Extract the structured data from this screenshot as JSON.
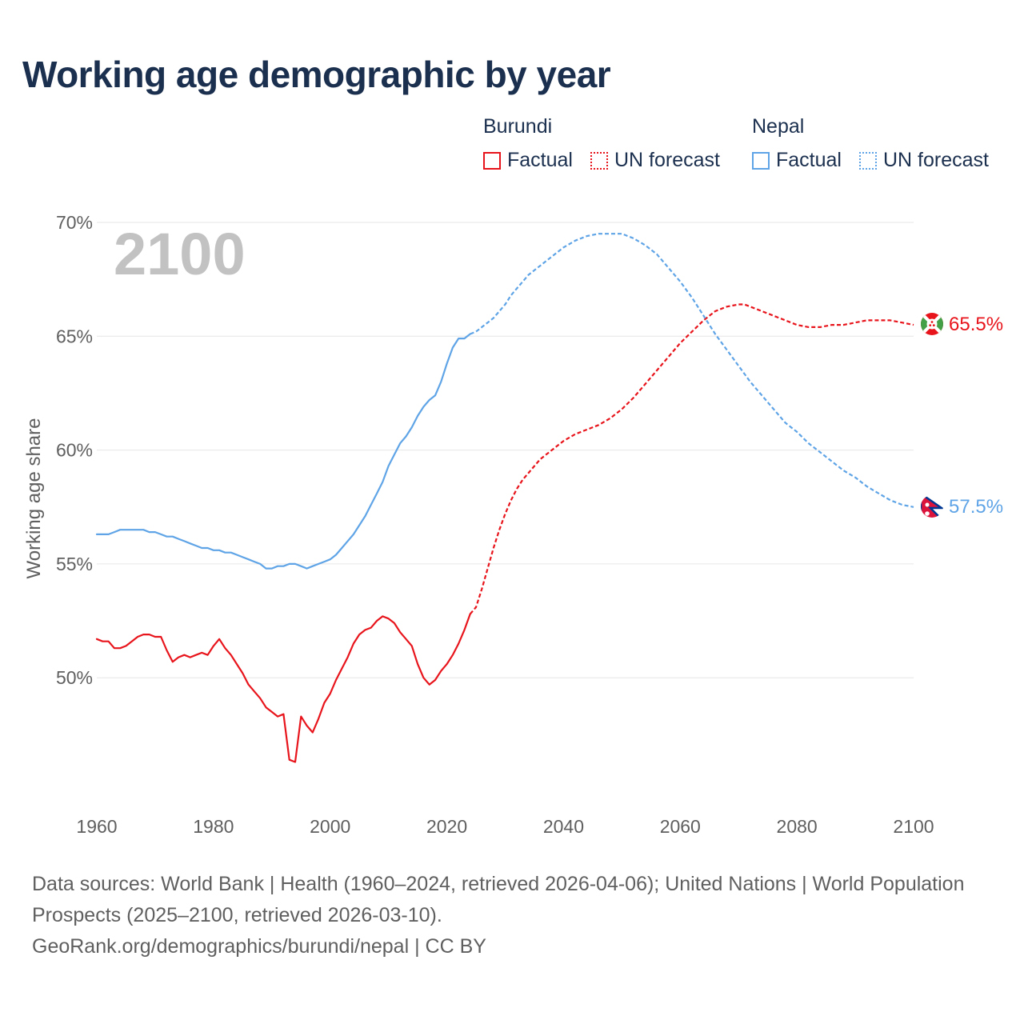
{
  "title": "Working age demographic by year",
  "year_overlay": "2100",
  "legend": {
    "groups": [
      {
        "name": "Burundi",
        "color": "#e8141b",
        "factual_label": "Factual",
        "forecast_label": "UN forecast"
      },
      {
        "name": "Nepal",
        "color": "#5fa4e6",
        "factual_label": "Factual",
        "forecast_label": "UN forecast"
      }
    ]
  },
  "footer": {
    "sources": "Data sources: World Bank | Health (1960–2024, retrieved 2026-04-06); United Nations | World Population Prospects (2025–2100, retrieved 2026-03-10).",
    "link": "GeoRank.org/demographics/burundi/nepal | CC BY"
  },
  "chart_data": {
    "type": "line",
    "title": "Working age demographic by year",
    "xlabel": "",
    "ylabel": "Working age share",
    "xlim": [
      1960,
      2100
    ],
    "ylim": [
      45.5,
      70.5
    ],
    "yticks": [
      50,
      55,
      60,
      65,
      70
    ],
    "ytick_labels": [
      "50%",
      "55%",
      "60%",
      "65%",
      "70%"
    ],
    "xticks": [
      1960,
      1980,
      2000,
      2020,
      2040,
      2060,
      2080,
      2100
    ],
    "xtick_labels": [
      "1960",
      "1980",
      "2000",
      "2020",
      "2040",
      "2060",
      "2080",
      "2100"
    ],
    "grid": true,
    "series": [
      {
        "name": "Burundi",
        "color": "#e8141b",
        "end_label": "65.5%",
        "factual": {
          "x": [
            1960,
            1961,
            1962,
            1963,
            1964,
            1965,
            1966,
            1967,
            1968,
            1969,
            1970,
            1971,
            1972,
            1973,
            1974,
            1975,
            1976,
            1977,
            1978,
            1979,
            1980,
            1981,
            1982,
            1983,
            1984,
            1985,
            1986,
            1987,
            1988,
            1989,
            1990,
            1991,
            1992,
            1993,
            1994,
            1995,
            1996,
            1997,
            1998,
            1999,
            2000,
            2001,
            2002,
            2003,
            2004,
            2005,
            2006,
            2007,
            2008,
            2009,
            2010,
            2011,
            2012,
            2013,
            2014,
            2015,
            2016,
            2017,
            2018,
            2019,
            2020,
            2021,
            2022,
            2023,
            2024
          ],
          "y": [
            51.7,
            51.6,
            51.6,
            51.3,
            51.3,
            51.4,
            51.6,
            51.8,
            51.9,
            51.9,
            51.8,
            51.8,
            51.2,
            50.7,
            50.9,
            51.0,
            50.9,
            51.0,
            51.1,
            51.0,
            51.4,
            51.7,
            51.3,
            51.0,
            50.6,
            50.2,
            49.7,
            49.4,
            49.1,
            48.7,
            48.5,
            48.3,
            48.4,
            46.4,
            46.3,
            48.3,
            47.9,
            47.6,
            48.2,
            48.9,
            49.3,
            49.9,
            50.4,
            50.9,
            51.5,
            51.9,
            52.1,
            52.2,
            52.5,
            52.7,
            52.6,
            52.4,
            52.0,
            51.7,
            51.4,
            50.6,
            50.0,
            49.7,
            49.9,
            50.3,
            50.6,
            51.0,
            51.5,
            52.1,
            52.8
          ]
        },
        "forecast": {
          "x": [
            2024,
            2025,
            2026,
            2027,
            2028,
            2029,
            2030,
            2031,
            2032,
            2033,
            2034,
            2035,
            2036,
            2037,
            2038,
            2039,
            2040,
            2042,
            2044,
            2046,
            2048,
            2050,
            2052,
            2054,
            2056,
            2058,
            2060,
            2062,
            2064,
            2066,
            2068,
            2070,
            2071,
            2072,
            2074,
            2076,
            2078,
            2080,
            2082,
            2084,
            2086,
            2088,
            2090,
            2092,
            2094,
            2096,
            2098,
            2100
          ],
          "y": [
            52.8,
            53.1,
            53.9,
            54.8,
            55.7,
            56.5,
            57.2,
            57.8,
            58.3,
            58.7,
            59.0,
            59.3,
            59.6,
            59.8,
            60.0,
            60.2,
            60.4,
            60.7,
            60.9,
            61.1,
            61.4,
            61.8,
            62.3,
            62.9,
            63.5,
            64.1,
            64.7,
            65.2,
            65.7,
            66.1,
            66.3,
            66.4,
            66.4,
            66.3,
            66.1,
            65.9,
            65.7,
            65.5,
            65.4,
            65.4,
            65.5,
            65.5,
            65.6,
            65.7,
            65.7,
            65.7,
            65.6,
            65.5
          ]
        }
      },
      {
        "name": "Nepal",
        "color": "#5fa4e6",
        "end_label": "57.5%",
        "factual": {
          "x": [
            1960,
            1961,
            1962,
            1963,
            1964,
            1965,
            1966,
            1967,
            1968,
            1969,
            1970,
            1971,
            1972,
            1973,
            1974,
            1975,
            1976,
            1977,
            1978,
            1979,
            1980,
            1981,
            1982,
            1983,
            1984,
            1985,
            1986,
            1987,
            1988,
            1989,
            1990,
            1991,
            1992,
            1993,
            1994,
            1995,
            1996,
            1997,
            1998,
            1999,
            2000,
            2001,
            2002,
            2003,
            2004,
            2005,
            2006,
            2007,
            2008,
            2009,
            2010,
            2011,
            2012,
            2013,
            2014,
            2015,
            2016,
            2017,
            2018,
            2019,
            2020,
            2021,
            2022,
            2023,
            2024
          ],
          "y": [
            56.3,
            56.3,
            56.3,
            56.4,
            56.5,
            56.5,
            56.5,
            56.5,
            56.5,
            56.4,
            56.4,
            56.3,
            56.2,
            56.2,
            56.1,
            56.0,
            55.9,
            55.8,
            55.7,
            55.7,
            55.6,
            55.6,
            55.5,
            55.5,
            55.4,
            55.3,
            55.2,
            55.1,
            55.0,
            54.8,
            54.8,
            54.9,
            54.9,
            55.0,
            55.0,
            54.9,
            54.8,
            54.9,
            55.0,
            55.1,
            55.2,
            55.4,
            55.7,
            56.0,
            56.3,
            56.7,
            57.1,
            57.6,
            58.1,
            58.6,
            59.3,
            59.8,
            60.3,
            60.6,
            61.0,
            61.5,
            61.9,
            62.2,
            62.4,
            63.0,
            63.8,
            64.5,
            64.9,
            64.9,
            65.1
          ]
        },
        "forecast": {
          "x": [
            2024,
            2025,
            2026,
            2027,
            2028,
            2029,
            2030,
            2031,
            2032,
            2033,
            2034,
            2035,
            2036,
            2038,
            2040,
            2042,
            2044,
            2046,
            2048,
            2050,
            2052,
            2054,
            2056,
            2058,
            2060,
            2062,
            2064,
            2066,
            2068,
            2070,
            2072,
            2074,
            2076,
            2078,
            2080,
            2082,
            2084,
            2086,
            2088,
            2090,
            2092,
            2094,
            2096,
            2098,
            2100
          ],
          "y": [
            65.1,
            65.2,
            65.4,
            65.6,
            65.8,
            66.1,
            66.4,
            66.8,
            67.1,
            67.4,
            67.7,
            67.9,
            68.1,
            68.5,
            68.9,
            69.2,
            69.4,
            69.5,
            69.5,
            69.5,
            69.3,
            69.0,
            68.6,
            68.0,
            67.4,
            66.7,
            65.9,
            65.1,
            64.4,
            63.7,
            63.0,
            62.4,
            61.8,
            61.2,
            60.8,
            60.3,
            59.9,
            59.5,
            59.1,
            58.8,
            58.4,
            58.1,
            57.8,
            57.6,
            57.5
          ]
        }
      }
    ]
  }
}
